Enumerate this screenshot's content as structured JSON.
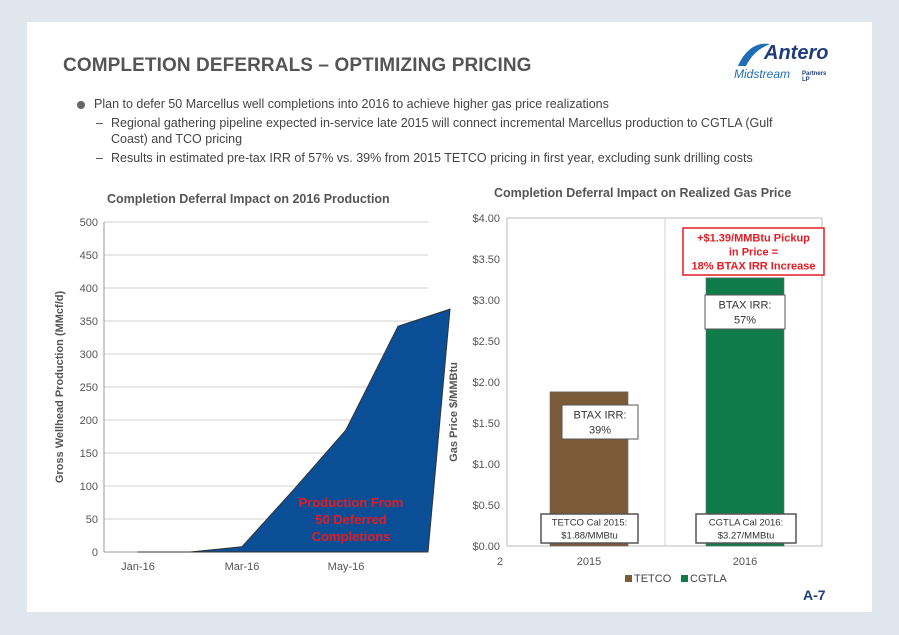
{
  "page": {
    "title": "COMPLETION DEFERRALS – OPTIMIZING PRICING",
    "page_number": "A-7",
    "logo": {
      "name": "Antero",
      "sub": "Midstream",
      "sub_small": "Partners LP"
    }
  },
  "bullets": {
    "main": "Plan to defer 50 Marcellus well completions into 2016 to achieve higher gas price realizations",
    "sub": [
      "Regional gathering pipeline expected in-service late 2015 will connect incremental Marcellus production to CGTLA (Gulf Coast) and TCO pricing",
      "Results in estimated pre-tax IRR of 57% vs. 39% from 2015 TETCO pricing in first year, excluding sunk drilling costs"
    ]
  },
  "chart_data": [
    {
      "type": "area",
      "title": "Completion Deferral Impact on 2016 Production",
      "ylabel": "Gross Wellhead Production (MMcf/d)",
      "xlabel": "",
      "ylim": [
        0,
        500
      ],
      "yticks": [
        "0",
        "50",
        "100",
        "150",
        "200",
        "250",
        "300",
        "350",
        "400",
        "450",
        "500"
      ],
      "xticks": [
        "Jan-16",
        "Mar-16",
        "May-16"
      ],
      "x": [
        "Jan-16",
        "Feb-16",
        "Mar-16",
        "Apr-16",
        "May-16",
        "Jun-16",
        "Jul-16"
      ],
      "values": [
        0,
        0,
        8,
        95,
        185,
        342,
        368
      ],
      "grid": true,
      "color": "#0a4f96",
      "annotation": "Production From 50 Deferred Completions",
      "annotation_color": "#e31b23"
    },
    {
      "type": "bar",
      "title": "Completion Deferral Impact on Realized Gas Price",
      "ylabel": "Gas Price $/MMBtu",
      "ylim": [
        0,
        4
      ],
      "yticks": [
        "$0.00",
        "$0.50",
        "$1.00",
        "$1.50",
        "$2.00",
        "$2.50",
        "$3.00",
        "$3.50",
        "$4.00"
      ],
      "categories": [
        "2015",
        "2016"
      ],
      "series": [
        {
          "name": "TETCO",
          "values": [
            1.88,
            null
          ],
          "color": "#7b5b3a"
        },
        {
          "name": "CGTLA",
          "values": [
            null,
            3.27
          ],
          "color": "#0f7a4a"
        }
      ],
      "legend_position": "bottom",
      "axis_clipped_label": "2",
      "labels": {
        "tetco_irr": "BTAX IRR:\n39%",
        "cgtla_irr": "BTAX IRR:\n57%",
        "tetco_price": "TETCO Cal 2015:\n$1.88/MMBtu",
        "cgtla_price": "CGTLA Cal 2016:\n$3.27/MMBtu",
        "pickup": "+$1.39/MMBtu Pickup\nin Price =\n18% BTAX IRR Increase"
      }
    }
  ]
}
